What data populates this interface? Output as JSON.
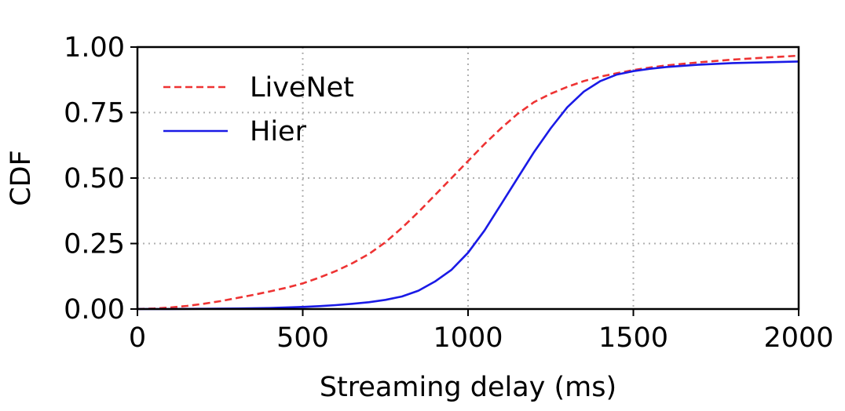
{
  "chart_data": {
    "type": "line",
    "xlabel": "Streaming delay (ms)",
    "ylabel": "CDF",
    "xlim": [
      0,
      2000
    ],
    "ylim": [
      0,
      1
    ],
    "x_ticks": [
      "0",
      "500",
      "1000",
      "1500",
      "2000"
    ],
    "y_ticks": [
      "0.00",
      "0.25",
      "0.50",
      "0.75",
      "1.00"
    ],
    "grid": true,
    "legend_position": "upper-left",
    "series": [
      {
        "name": "LiveNet",
        "color": "#ee3333",
        "style": "dashed",
        "x": [
          0,
          50,
          100,
          150,
          200,
          250,
          300,
          350,
          400,
          450,
          500,
          550,
          600,
          650,
          700,
          750,
          800,
          850,
          900,
          950,
          1000,
          1050,
          1100,
          1150,
          1200,
          1250,
          1300,
          1350,
          1400,
          1450,
          1500,
          1550,
          1600,
          1700,
          1800,
          1900,
          2000
        ],
        "values": [
          0.0,
          0.002,
          0.006,
          0.012,
          0.02,
          0.03,
          0.042,
          0.054,
          0.067,
          0.081,
          0.098,
          0.12,
          0.145,
          0.175,
          0.21,
          0.255,
          0.31,
          0.37,
          0.435,
          0.5,
          0.565,
          0.63,
          0.69,
          0.745,
          0.79,
          0.822,
          0.848,
          0.87,
          0.887,
          0.9,
          0.912,
          0.922,
          0.93,
          0.942,
          0.952,
          0.96,
          0.967
        ]
      },
      {
        "name": "Hier",
        "color": "#1a1ae6",
        "style": "solid",
        "x": [
          0,
          100,
          200,
          300,
          400,
          500,
          550,
          600,
          650,
          700,
          750,
          800,
          850,
          900,
          950,
          1000,
          1050,
          1100,
          1150,
          1200,
          1250,
          1300,
          1350,
          1400,
          1450,
          1500,
          1550,
          1600,
          1700,
          1800,
          1900,
          2000
        ],
        "values": [
          0.0,
          0.0,
          0.001,
          0.002,
          0.004,
          0.008,
          0.011,
          0.015,
          0.02,
          0.026,
          0.035,
          0.048,
          0.07,
          0.105,
          0.15,
          0.215,
          0.3,
          0.4,
          0.5,
          0.6,
          0.69,
          0.77,
          0.83,
          0.87,
          0.895,
          0.908,
          0.917,
          0.924,
          0.933,
          0.939,
          0.942,
          0.945
        ]
      }
    ]
  }
}
